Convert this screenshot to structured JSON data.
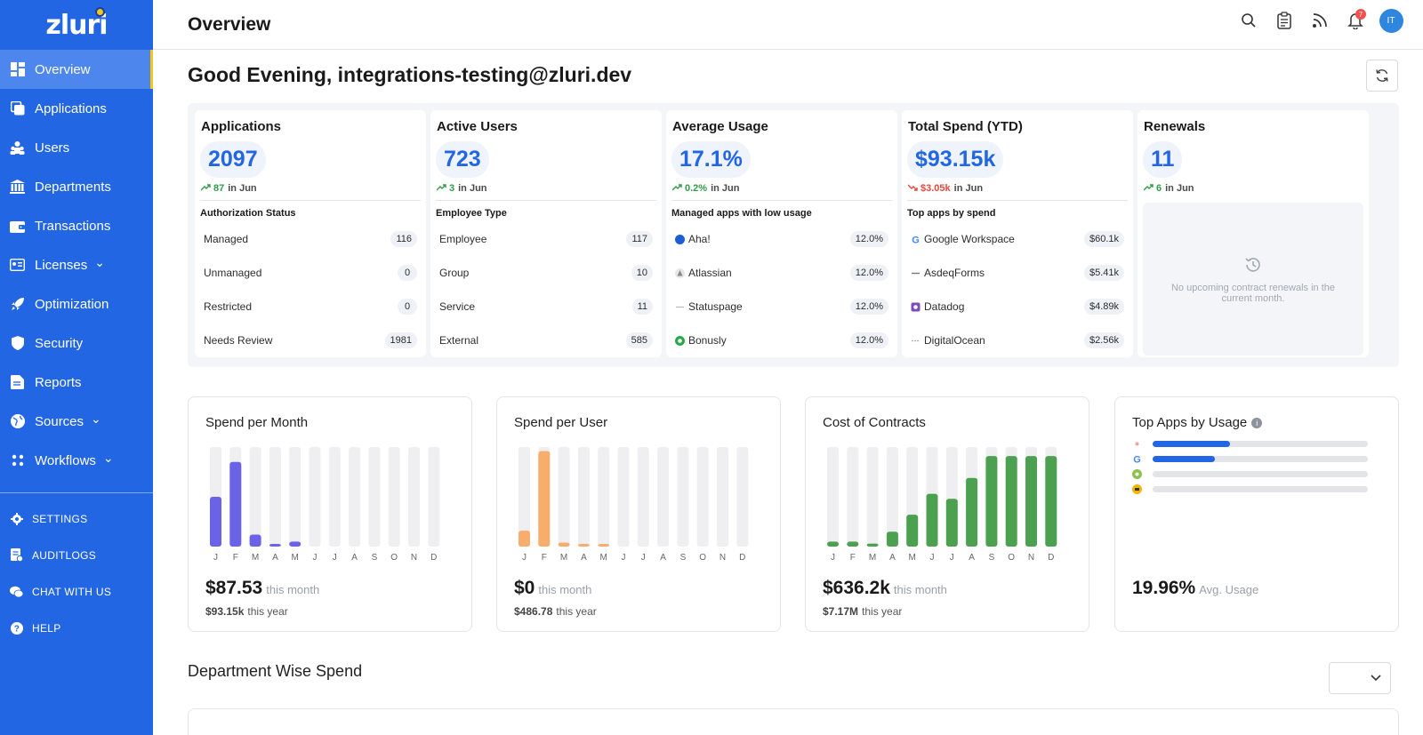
{
  "sidebar": {
    "logo": "zluri",
    "items": [
      {
        "label": "Overview",
        "icon": "dashboard-icon",
        "active": true
      },
      {
        "label": "Applications",
        "icon": "applications-icon"
      },
      {
        "label": "Users",
        "icon": "users-icon"
      },
      {
        "label": "Departments",
        "icon": "departments-icon"
      },
      {
        "label": "Transactions",
        "icon": "wallet-icon"
      },
      {
        "label": "Licenses",
        "icon": "licenses-icon",
        "chevron": true
      },
      {
        "label": "Optimization",
        "icon": "rocket-icon"
      },
      {
        "label": "Security",
        "icon": "shield-icon"
      },
      {
        "label": "Reports",
        "icon": "reports-icon"
      },
      {
        "label": "Sources",
        "icon": "globe-icon",
        "chevron": true
      },
      {
        "label": "Workflows",
        "icon": "workflows-icon",
        "chevron": true
      }
    ],
    "bottom": [
      {
        "label": "SETTINGS",
        "icon": "gear-icon"
      },
      {
        "label": "AUDITLOGS",
        "icon": "auditlogs-icon"
      },
      {
        "label": "CHAT WITH US",
        "icon": "chat-icon"
      },
      {
        "label": "HELP",
        "icon": "help-icon"
      }
    ]
  },
  "header": {
    "title": "Overview",
    "notification_count": "7",
    "avatar_initials": "IT"
  },
  "greeting": "Good Evening, integrations-testing@zluri.dev",
  "stats": [
    {
      "title": "Applications",
      "value": "2097",
      "trend_dir": "up",
      "trend_value": "87",
      "trend_suffix": "in Jun",
      "sub_title": "Authorization Status",
      "rows": [
        {
          "label": "Managed",
          "value": "116"
        },
        {
          "label": "Unmanaged",
          "value": "0"
        },
        {
          "label": "Restricted",
          "value": "0"
        },
        {
          "label": "Needs Review",
          "value": "1981"
        }
      ]
    },
    {
      "title": "Active Users",
      "value": "723",
      "trend_dir": "up",
      "trend_value": "3",
      "trend_suffix": "in Jun",
      "sub_title": "Employee Type",
      "rows": [
        {
          "label": "Employee",
          "value": "117"
        },
        {
          "label": "Group",
          "value": "10"
        },
        {
          "label": "Service",
          "value": "11"
        },
        {
          "label": "External",
          "value": "585"
        }
      ]
    },
    {
      "title": "Average Usage",
      "value": "17.1%",
      "trend_dir": "up",
      "trend_value": "0.2%",
      "trend_suffix": "in Jun",
      "sub_title": "Managed apps with low usage",
      "rows": [
        {
          "label": "Aha!",
          "value": "12.0%",
          "icon": "aha-icon"
        },
        {
          "label": "Atlassian",
          "value": "12.0%",
          "icon": "atlassian-icon"
        },
        {
          "label": "Statuspage",
          "value": "12.0%",
          "icon": "statuspage-icon"
        },
        {
          "label": "Bonusly",
          "value": "12.0%",
          "icon": "bonusly-icon"
        }
      ]
    },
    {
      "title": "Total Spend (YTD)",
      "value": "$93.15k",
      "trend_dir": "down",
      "trend_value": "$3.05k",
      "trend_suffix": "in Jun",
      "sub_title": "Top apps by spend",
      "rows": [
        {
          "label": "Google Workspace",
          "value": "$60.1k",
          "icon": "google-icon"
        },
        {
          "label": "AsdeqForms",
          "value": "$5.41k",
          "icon": "asdeqforms-icon"
        },
        {
          "label": "Datadog",
          "value": "$4.89k",
          "icon": "datadog-icon"
        },
        {
          "label": "DigitalOcean",
          "value": "$2.56k",
          "icon": "digitalocean-icon"
        }
      ]
    },
    {
      "title": "Renewals",
      "value": "11",
      "trend_dir": "up",
      "trend_value": "6",
      "trend_suffix": "in Jun",
      "empty_text": "No upcoming contract renewals in the current month."
    }
  ],
  "charts": [
    {
      "title": "Spend per Month",
      "color": "#6a63e8",
      "months": [
        "J",
        "F",
        "M",
        "A",
        "M",
        "J",
        "J",
        "A",
        "S",
        "O",
        "N",
        "D"
      ],
      "fill": [
        0.5,
        0.85,
        0.12,
        0.02,
        0.05,
        0,
        0,
        0,
        0,
        0,
        0,
        0
      ],
      "big": "$87.53",
      "big_sub": "this month",
      "small": "$93.15k",
      "small_sub": "this year"
    },
    {
      "title": "Spend per User",
      "color": "#f7ad6b",
      "months": [
        "J",
        "F",
        "M",
        "A",
        "M",
        "J",
        "J",
        "A",
        "S",
        "O",
        "N",
        "D"
      ],
      "fill": [
        0.16,
        0.96,
        0.04,
        0.02,
        0.01,
        0,
        0,
        0,
        0,
        0,
        0,
        0
      ],
      "big": "$0",
      "big_sub": "this month",
      "small": "$486.78",
      "small_sub": "this year"
    },
    {
      "title": "Cost of Contracts",
      "color": "#4ba150",
      "months": [
        "J",
        "F",
        "M",
        "A",
        "M",
        "J",
        "J",
        "A",
        "S",
        "O",
        "N",
        "D"
      ],
      "fill": [
        0.05,
        0.05,
        0.03,
        0.15,
        0.32,
        0.53,
        0.48,
        0.69,
        0.91,
        0.91,
        0.91,
        0.91
      ],
      "big": "$636.2k",
      "big_sub": "this month",
      "small": "$7.17M",
      "small_sub": "this year"
    }
  ],
  "top_apps": {
    "title": "Top Apps by Usage",
    "apps": [
      {
        "icon": "app-icon-1",
        "usage": 0.36
      },
      {
        "icon": "google-icon",
        "usage": 0.29
      },
      {
        "icon": "app-icon-3",
        "usage": 0
      },
      {
        "icon": "app-icon-4",
        "usage": 0
      }
    ],
    "big": "19.96%",
    "big_sub": "Avg. Usage"
  },
  "department": {
    "title": "Department Wise Spend"
  }
}
